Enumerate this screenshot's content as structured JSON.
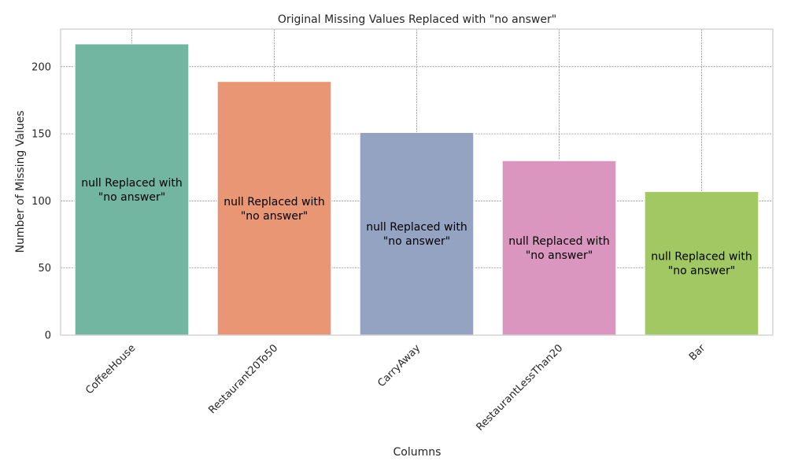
{
  "chart_data": {
    "type": "bar",
    "title": "Original Missing Values Replaced with \"no answer\"",
    "xlabel": "Columns",
    "ylabel": "Number of Missing Values",
    "categories": [
      "CoffeeHouse",
      "Restaurant20To50",
      "CarryAway",
      "RestaurantLessThan20",
      "Bar"
    ],
    "values": [
      217,
      189,
      151,
      130,
      107
    ],
    "ylim": [
      0,
      228
    ],
    "yticks": [
      0,
      50,
      100,
      150,
      200
    ],
    "bar_annotation": [
      "null Replaced with",
      "\"no answer\""
    ],
    "grid": true,
    "colors": [
      "#72b6a1",
      "#e99675",
      "#95a3c3",
      "#db96c0",
      "#a1c862"
    ]
  }
}
